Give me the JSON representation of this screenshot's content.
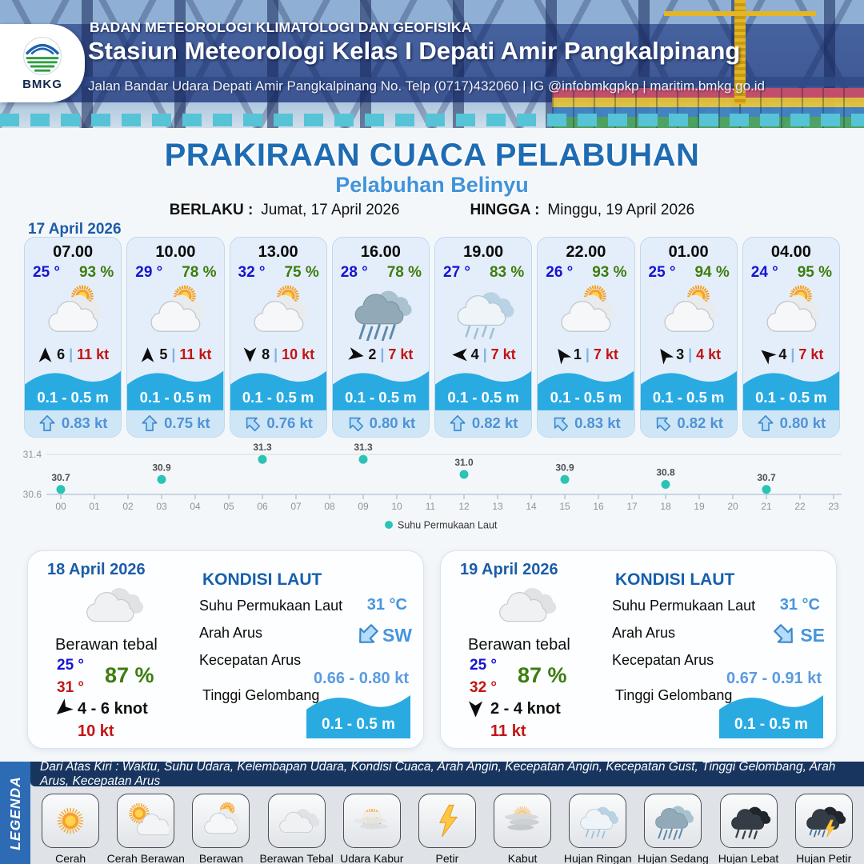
{
  "header": {
    "org": "BADAN METEOROLOGI KLIMATOLOGI DAN GEOFISIKA",
    "station": "Stasiun Meteorologi Kelas I Depati Amir Pangkalpinang",
    "address": "Jalan Bandar Udara Depati Amir Pangkalpinang No. Telp (0717)432060 | IG @infobmkgpkp | maritim.bmkg.go.id",
    "logo_text": "BMKG"
  },
  "title": {
    "main": "PRAKIRAAN CUACA PELABUHAN",
    "subtitle": "Pelabuhan Belinyu",
    "berlaku_label": "BERLAKU :",
    "berlaku_value": "Jumat, 17 April 2026",
    "hingga_label": "HINGGA :",
    "hingga_value": "Minggu, 19 April 2026"
  },
  "forecast_day": {
    "date": "17 April 2026",
    "hours": [
      {
        "time": "07.00",
        "temp": "25 °",
        "humidity": "93 %",
        "icon": "berawan",
        "wind_dir_deg": 0,
        "wind_speed": "6",
        "gust": "11 kt",
        "wave": "0.1 - 0.5 m",
        "current_dir_deg": 0,
        "current_speed": "0.83 kt"
      },
      {
        "time": "10.00",
        "temp": "29 °",
        "humidity": "78 %",
        "icon": "berawan",
        "wind_dir_deg": 0,
        "wind_speed": "5",
        "gust": "11 kt",
        "wave": "0.1 - 0.5 m",
        "current_dir_deg": 0,
        "current_speed": "0.75 kt"
      },
      {
        "time": "13.00",
        "temp": "32 °",
        "humidity": "75 %",
        "icon": "berawan",
        "wind_dir_deg": 180,
        "wind_speed": "8",
        "gust": "10 kt",
        "wave": "0.1 - 0.5 m",
        "current_dir_deg": -45,
        "current_speed": "0.76 kt"
      },
      {
        "time": "16.00",
        "temp": "28 °",
        "humidity": "78 %",
        "icon": "hujan-sedang",
        "wind_dir_deg": 100,
        "wind_speed": "2",
        "gust": "7 kt",
        "wave": "0.1 - 0.5 m",
        "current_dir_deg": -45,
        "current_speed": "0.80 kt"
      },
      {
        "time": "19.00",
        "temp": "27 °",
        "humidity": "83 %",
        "icon": "hujan-ringan",
        "wind_dir_deg": 270,
        "wind_speed": "4",
        "gust": "7 kt",
        "wave": "0.1 - 0.5 m",
        "current_dir_deg": 0,
        "current_speed": "0.82 kt"
      },
      {
        "time": "22.00",
        "temp": "26 °",
        "humidity": "93 %",
        "icon": "berawan",
        "wind_dir_deg": -35,
        "wind_speed": "1",
        "gust": "7 kt",
        "wave": "0.1 - 0.5 m",
        "current_dir_deg": -45,
        "current_speed": "0.83 kt"
      },
      {
        "time": "01.00",
        "temp": "25 °",
        "humidity": "94 %",
        "icon": "berawan",
        "wind_dir_deg": -35,
        "wind_speed": "3",
        "gust": "4 kt",
        "wave": "0.1 - 0.5 m",
        "current_dir_deg": -45,
        "current_speed": "0.82 kt"
      },
      {
        "time": "04.00",
        "temp": "24 °",
        "humidity": "95 %",
        "icon": "berawan",
        "wind_dir_deg": -50,
        "wind_speed": "4",
        "gust": "7 kt",
        "wave": "0.1 - 0.5 m",
        "current_dir_deg": 0,
        "current_speed": "0.80 kt"
      }
    ]
  },
  "chart_data": {
    "type": "scatter",
    "series_name": "Suhu Permukaan Laut",
    "x": [
      0,
      3,
      6,
      9,
      12,
      15,
      18,
      21
    ],
    "values": [
      30.7,
      30.9,
      31.3,
      31.3,
      31.0,
      30.9,
      30.8,
      30.7
    ],
    "x_ticks": [
      "00",
      "01",
      "02",
      "03",
      "04",
      "05",
      "06",
      "07",
      "08",
      "09",
      "10",
      "11",
      "12",
      "13",
      "14",
      "15",
      "16",
      "17",
      "18",
      "19",
      "20",
      "21",
      "22",
      "23"
    ],
    "y_ticks": [
      "31.4",
      "30.6"
    ],
    "ylim": [
      30.6,
      31.4
    ],
    "legend_position": "bottom-center",
    "point_color": "#2bc4b4"
  },
  "day_cards": [
    {
      "date": "18 April 2026",
      "condition": "Berawan tebal",
      "icon": "berawan-tebal",
      "temp_min": "25 °",
      "temp_max": "31 °",
      "humidity": "87 %",
      "wind_dir_deg": 230,
      "wind_range": "4  - 6 knot",
      "gust": "10 kt",
      "sea": {
        "heading": "KONDISI LAUT",
        "sst_label": "Suhu Permukaan Laut",
        "sst_value": "31 °C",
        "current_dir_label": "Arah Arus",
        "current_dir": "SW",
        "current_dir_deg": 225,
        "current_speed_label": "Kecepatan Arus",
        "current_speed": "0.66  - 0.80 kt",
        "wave_label": "Tinggi Gelombang",
        "wave_value": "0.1 - 0.5 m"
      }
    },
    {
      "date": "19 April 2026",
      "condition": "Berawan tebal",
      "icon": "berawan-tebal",
      "temp_min": "25 °",
      "temp_max": "32 °",
      "humidity": "87 %",
      "wind_dir_deg": 180,
      "wind_range": "2  - 4 knot",
      "gust": "11 kt",
      "sea": {
        "heading": "KONDISI LAUT",
        "sst_label": "Suhu Permukaan Laut",
        "sst_value": "31 °C",
        "current_dir_label": "Arah Arus",
        "current_dir": "SE",
        "current_dir_deg": 135,
        "current_speed_label": "Kecepatan Arus",
        "current_speed": "0.67  - 0.91 kt",
        "wave_label": "Tinggi Gelombang",
        "wave_value": "0.1 - 0.5 m"
      }
    }
  ],
  "legend": {
    "title": "LEGENDA",
    "strip": "Dari Atas Kiri : Waktu, Suhu Udara, Kelembapan Udara, Kondisi Cuaca, Arah Angin, Kecepatan Angin, Kecepatan Gust, Tinggi Gelombang, Arah Arus, Kecepatan Arus",
    "items": [
      {
        "label": "Cerah",
        "icon": "cerah"
      },
      {
        "label": "Cerah Berawan",
        "icon": "cerah-berawan"
      },
      {
        "label": "Berawan",
        "icon": "berawan"
      },
      {
        "label": "Berawan Tebal",
        "icon": "berawan-tebal"
      },
      {
        "label": "Udara Kabur",
        "icon": "udara-kabur"
      },
      {
        "label": "Petir",
        "icon": "petir"
      },
      {
        "label": "Kabut",
        "icon": "kabut"
      },
      {
        "label": "Hujan Ringan",
        "icon": "hujan-ringan"
      },
      {
        "label": "Hujan Sedang",
        "icon": "hujan-sedang"
      },
      {
        "label": "Hujan Lebat",
        "icon": "hujan-lebat"
      },
      {
        "label": "Hujan Petir",
        "icon": "hujan-petir"
      }
    ]
  },
  "colors": {
    "accent_blue": "#1b5ca8",
    "value_blue": "#4f93d6",
    "wave_blue": "#29abe2",
    "temp_blue": "#1414d2",
    "humidity_green": "#3e7c0f",
    "gust_red": "#c41414",
    "chart_teal": "#2bc4b4",
    "legend_navy": "#17355f",
    "legend_bar_blue": "#2d6cb5"
  }
}
